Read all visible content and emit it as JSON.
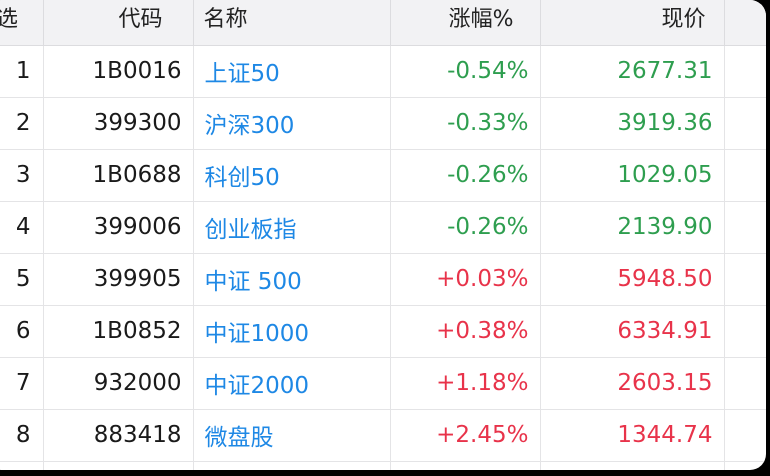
{
  "headers": {
    "idx": "选",
    "code": "代码",
    "name": "名称",
    "change": "涨幅%",
    "price": "现价"
  },
  "rows": [
    {
      "idx": "1",
      "code": "1B0016",
      "name": "上证50",
      "change": "-0.54%",
      "price": "2677.31",
      "direction": "down"
    },
    {
      "idx": "2",
      "code": "399300",
      "name": "沪深300",
      "change": "-0.33%",
      "price": "3919.36",
      "direction": "down"
    },
    {
      "idx": "3",
      "code": "1B0688",
      "name": "科创50",
      "change": "-0.26%",
      "price": "1029.05",
      "direction": "down"
    },
    {
      "idx": "4",
      "code": "399006",
      "name": "创业板指",
      "change": "-0.26%",
      "price": "2139.90",
      "direction": "down"
    },
    {
      "idx": "5",
      "code": "399905",
      "name": "中证 500",
      "change": "+0.03%",
      "price": "5948.50",
      "direction": "up"
    },
    {
      "idx": "6",
      "code": "1B0852",
      "name": "中证1000",
      "change": "+0.38%",
      "price": "6334.91",
      "direction": "up"
    },
    {
      "idx": "7",
      "code": "932000",
      "name": "中证2000",
      "change": "+1.18%",
      "price": "2603.15",
      "direction": "up"
    },
    {
      "idx": "8",
      "code": "883418",
      "name": "微盘股",
      "change": "+2.45%",
      "price": "1344.74",
      "direction": "up"
    }
  ],
  "colors": {
    "down": "#2e9e4f",
    "up": "#e8334a",
    "name_link": "#1e88e5",
    "header_bg": "#f2f2f4"
  }
}
